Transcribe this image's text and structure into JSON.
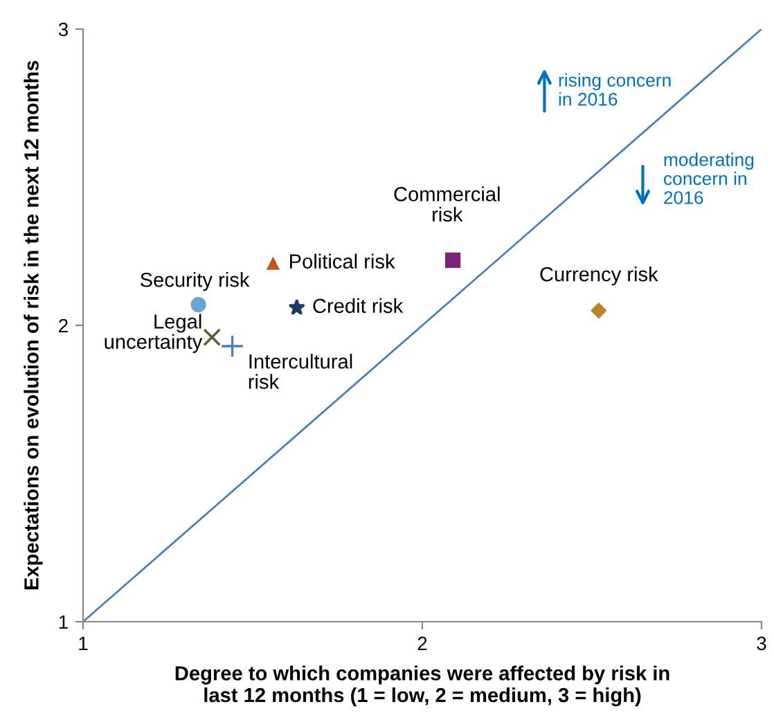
{
  "chart_data": {
    "type": "scatter",
    "xlabel": "Degree to which companies were affected by risk in last 12 months (1 = low, 2 = medium, 3 = high)",
    "ylabel": "Expectations on evolution of risk in the next 12 months",
    "xlim": [
      1,
      3
    ],
    "ylim": [
      1,
      3
    ],
    "xticks": [
      1,
      2,
      3
    ],
    "yticks": [
      1,
      2,
      3
    ],
    "grid": false,
    "legend": false,
    "series": [
      {
        "name": "Security risk",
        "color": "#6aa5d0",
        "marker": "circle",
        "x": [
          1.34
        ],
        "values": [
          2.07
        ]
      },
      {
        "name": "Legal uncertainty",
        "color": "#4f6228",
        "marker": "cross",
        "x": [
          1.38
        ],
        "values": [
          1.96
        ]
      },
      {
        "name": "Intercultural risk",
        "color": "#4a7ebb",
        "marker": "plus",
        "x": [
          1.44
        ],
        "values": [
          1.93
        ]
      },
      {
        "name": "Political risk",
        "color": "#c0561a",
        "marker": "triangle",
        "x": [
          1.56
        ],
        "values": [
          2.21
        ]
      },
      {
        "name": "Credit risk",
        "color": "#1f3864",
        "marker": "star",
        "x": [
          1.63
        ],
        "values": [
          2.06
        ]
      },
      {
        "name": "Commercial risk",
        "color": "#7b2378",
        "marker": "square",
        "x": [
          2.09
        ],
        "values": [
          2.22
        ]
      },
      {
        "name": "Currency risk",
        "color": "#b9822e",
        "marker": "diamond",
        "x": [
          2.52
        ],
        "values": [
          2.05
        ]
      },
      {
        "type": "line",
        "color": "#4a7ebb",
        "marker": "none",
        "x": [
          1,
          3
        ],
        "values": [
          1,
          3
        ]
      }
    ],
    "annotations": [
      "rising concern\nin 2016",
      "moderating\nconcern in\n2016"
    ]
  }
}
